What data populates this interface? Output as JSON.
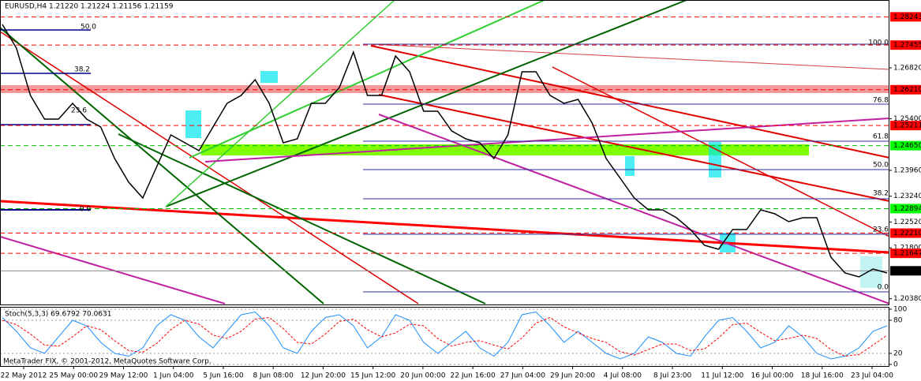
{
  "chart_data": [
    {
      "type": "line",
      "title": "EURUSD,H4  1.21220 1.21224 1.21156 1.21159",
      "x_tick_labels": [
        "22 May 2012",
        "25 May 00:00",
        "29 May 12:00",
        "1 Jun 04:00",
        "5 Jun 16:00",
        "8 Jun 08:00",
        "12 Jun 20:00",
        "15 Jun 12:00",
        "20 Jun 00:00",
        "22 Jun 16:00",
        "27 Jun 04:00",
        "29 Jun 20:00",
        "4 Jul 08:00",
        "8 Jul 23:00",
        "11 Jul 12:00",
        "16 Jul 00:00",
        "18 Jul 16:00",
        "23 Jul 04:00"
      ],
      "series": [
        {
          "color": "#000000",
          "values": [
            1.2803,
            1.2737,
            1.2605,
            1.2539,
            1.2539,
            1.2583,
            1.2539,
            1.2517,
            1.2429,
            1.2363,
            1.2319,
            1.2407,
            1.2495,
            1.2473,
            1.2451,
            1.2517,
            1.2583,
            1.2605,
            1.2649,
            1.2583,
            1.2473,
            1.2484,
            1.2583,
            1.2583,
            1.2627,
            1.2726,
            1.2605,
            1.2605,
            1.2715,
            1.2671,
            1.2561,
            1.2561,
            1.2506,
            1.2484,
            1.2473,
            1.2429,
            1.2495,
            1.2671,
            1.2671,
            1.2605,
            1.2583,
            1.2594,
            1.2528,
            1.2429,
            1.2374,
            1.2319,
            1.2286,
            1.2286,
            1.2264,
            1.2231,
            1.2187,
            1.2176,
            1.2231,
            1.2231,
            1.2286,
            1.2275,
            1.2253,
            1.2264,
            1.2264,
            1.2154,
            1.211,
            1.2099,
            1.2121,
            1.211
          ]
        }
      ],
      "ylim": [
        1.2022,
        1.2869
      ],
      "yticks": [
        {
          "value": 1.2682,
          "label": "1.26820"
        },
        {
          "value": 1.254,
          "label": "1.25400"
        },
        {
          "value": 1.2396,
          "label": "1.23960"
        },
        {
          "value": 1.2324,
          "label": "1.23240"
        },
        {
          "value": 1.2252,
          "label": "1.22520"
        },
        {
          "value": 1.218,
          "label": "1.21800"
        },
        {
          "value": 1.2038,
          "label": "1.20380"
        }
      ],
      "levels": [
        1.28243,
        1.27455,
        {
          "value": 1.2621,
          "label": "1.26210"
        },
        1.25211,
        {
          "value": 1.2465,
          "label": "1.24650"
        },
        1.22894,
        {
          "value": 1.2221,
          "label": "1.22210"
        },
        1.21647,
        1.21159
      ],
      "level_colors": [
        "#ff0000",
        "#ff0000",
        "#ff0000",
        "#ff0000",
        "#00c000",
        "#00c000",
        "#ff0000",
        "#ff0000",
        "#000000"
      ],
      "fib_labels_left": [
        "50.0",
        "38.2",
        "23.6",
        "0.0"
      ],
      "fib_labels_right": [
        "100.0",
        "76.8",
        "61.8",
        "50.0",
        "38.2",
        "23.6",
        "0.0"
      ],
      "footer": "MetaTrader FIX, © 2001-2012, MetaQuotes Software Corp."
    },
    {
      "type": "line",
      "title": "Stoch(5,3,3) 69.6792 70.0631",
      "series": [
        {
          "color": "#1e90ff",
          "values": [
            85,
            60,
            30,
            20,
            50,
            80,
            70,
            40,
            20,
            15,
            30,
            70,
            90,
            80,
            50,
            30,
            60,
            90,
            95,
            70,
            30,
            20,
            60,
            85,
            90,
            70,
            30,
            50,
            90,
            80,
            40,
            20,
            40,
            60,
            30,
            15,
            40,
            90,
            95,
            70,
            40,
            60,
            40,
            20,
            10,
            20,
            50,
            40,
            20,
            15,
            50,
            80,
            85,
            60,
            30,
            40,
            70,
            50,
            20,
            10,
            15,
            30,
            60,
            70
          ]
        },
        {
          "color": "#ff0000",
          "values": [
            80,
            72,
            55,
            35,
            33,
            50,
            70,
            63,
            43,
            25,
            22,
            38,
            63,
            80,
            73,
            53,
            47,
            60,
            82,
            85,
            65,
            40,
            37,
            55,
            78,
            82,
            63,
            50,
            57,
            73,
            70,
            47,
            33,
            40,
            43,
            35,
            28,
            48,
            75,
            85,
            68,
            57,
            47,
            40,
            23,
            17,
            27,
            37,
            37,
            25,
            28,
            48,
            72,
            75,
            58,
            43,
            47,
            53,
            47,
            27,
            15,
            18,
            35,
            53
          ]
        }
      ],
      "ylim": [
        0,
        100
      ],
      "yticks": [
        100,
        80,
        20,
        0
      ]
    }
  ]
}
